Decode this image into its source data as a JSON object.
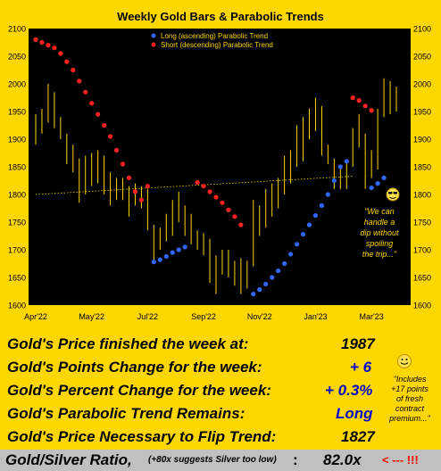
{
  "chart_data": {
    "type": "scatter",
    "title": "Weekly Gold Bars & Parabolic Trends",
    "ylim": [
      1600,
      2100
    ],
    "y_ticks": [
      1600,
      1650,
      1700,
      1750,
      1800,
      1850,
      1900,
      1950,
      2000,
      2050,
      2100
    ],
    "x_ticks": [
      "Apr'22",
      "May'22",
      "Jul'22",
      "Sep'22",
      "Nov'22",
      "Jan'23",
      "Mar'23"
    ],
    "legend": {
      "placement": "top-center",
      "entries": [
        "Long (ascending) Parabolic Trend",
        "Short (descending) Parabolic Trend"
      ]
    },
    "colors": {
      "background": "#000000",
      "bars": "#FFD700",
      "long": "#3366FF",
      "short": "#FF2020",
      "trendline": "#FFD700"
    },
    "annotation": {
      "lines": [
        "\"We can",
        "handle a",
        "dip without",
        "spoiling",
        "the trip...\""
      ]
    },
    "trendline": {
      "start_week": 0,
      "start_value": 1800,
      "end_week": 51,
      "end_value": 1833
    },
    "bars": [
      {
        "week": 0,
        "high": 1945,
        "low": 1890
      },
      {
        "week": 1,
        "high": 1955,
        "low": 1910
      },
      {
        "week": 2,
        "high": 2000,
        "low": 1930
      },
      {
        "week": 3,
        "high": 1985,
        "low": 1920
      },
      {
        "week": 4,
        "high": 1940,
        "low": 1900
      },
      {
        "week": 5,
        "high": 1910,
        "low": 1855
      },
      {
        "week": 6,
        "high": 1890,
        "low": 1840
      },
      {
        "week": 7,
        "high": 1865,
        "low": 1785
      },
      {
        "week": 8,
        "high": 1870,
        "low": 1800
      },
      {
        "week": 9,
        "high": 1875,
        "low": 1815
      },
      {
        "week": 10,
        "high": 1880,
        "low": 1820
      },
      {
        "week": 11,
        "high": 1870,
        "low": 1800
      },
      {
        "week": 12,
        "high": 1840,
        "low": 1780
      },
      {
        "week": 13,
        "high": 1830,
        "low": 1790
      },
      {
        "week": 14,
        "high": 1830,
        "low": 1790
      },
      {
        "week": 15,
        "high": 1815,
        "low": 1760
      },
      {
        "week": 16,
        "high": 1820,
        "low": 1780
      },
      {
        "week": 17,
        "high": 1815,
        "low": 1775
      },
      {
        "week": 18,
        "high": 1810,
        "low": 1735
      },
      {
        "week": 19,
        "high": 1745,
        "low": 1680
      },
      {
        "week": 20,
        "high": 1740,
        "low": 1700
      },
      {
        "week": 21,
        "high": 1765,
        "low": 1715
      },
      {
        "week": 22,
        "high": 1790,
        "low": 1725
      },
      {
        "week": 23,
        "high": 1805,
        "low": 1750
      },
      {
        "week": 24,
        "high": 1780,
        "low": 1725
      },
      {
        "week": 25,
        "high": 1765,
        "low": 1710
      },
      {
        "week": 26,
        "high": 1735,
        "low": 1700
      },
      {
        "week": 27,
        "high": 1730,
        "low": 1690
      },
      {
        "week": 28,
        "high": 1720,
        "low": 1640
      },
      {
        "week": 29,
        "high": 1690,
        "low": 1620
      },
      {
        "week": 30,
        "high": 1700,
        "low": 1655
      },
      {
        "week": 31,
        "high": 1700,
        "low": 1650
      },
      {
        "week": 32,
        "high": 1680,
        "low": 1635
      },
      {
        "week": 33,
        "high": 1685,
        "low": 1620
      },
      {
        "week": 34,
        "high": 1680,
        "low": 1630
      },
      {
        "week": 35,
        "high": 1790,
        "low": 1670
      },
      {
        "week": 36,
        "high": 1780,
        "low": 1725
      },
      {
        "week": 37,
        "high": 1810,
        "low": 1740
      },
      {
        "week": 38,
        "high": 1820,
        "low": 1760
      },
      {
        "week": 39,
        "high": 1830,
        "low": 1775
      },
      {
        "week": 40,
        "high": 1870,
        "low": 1800
      },
      {
        "week": 41,
        "high": 1880,
        "low": 1820
      },
      {
        "week": 42,
        "high": 1925,
        "low": 1850
      },
      {
        "week": 43,
        "high": 1940,
        "low": 1860
      },
      {
        "week": 44,
        "high": 1955,
        "low": 1900
      },
      {
        "week": 45,
        "high": 1975,
        "low": 1915
      },
      {
        "week": 46,
        "high": 1960,
        "low": 1870
      },
      {
        "week": 47,
        "high": 1890,
        "low": 1855
      },
      {
        "week": 48,
        "high": 1865,
        "low": 1810
      },
      {
        "week": 49,
        "high": 1850,
        "low": 1810
      },
      {
        "week": 50,
        "high": 1860,
        "low": 1810
      },
      {
        "week": 51,
        "high": 1920,
        "low": 1850
      },
      {
        "week": 52,
        "high": 1945,
        "low": 1885
      },
      {
        "week": 53,
        "high": 1910,
        "low": 1810
      },
      {
        "week": 54,
        "high": 1880,
        "low": 1830
      },
      {
        "week": 55,
        "high": 1955,
        "low": 1845
      },
      {
        "week": 56,
        "high": 2010,
        "low": 1940
      },
      {
        "week": 57,
        "high": 2005,
        "low": 1945
      },
      {
        "week": 58,
        "high": 1995,
        "low": 1950
      }
    ],
    "series": [
      {
        "name": "Long (ascending) Parabolic Trend",
        "points": [
          {
            "week": 19,
            "value": 1678
          },
          {
            "week": 20,
            "value": 1682
          },
          {
            "week": 21,
            "value": 1688
          },
          {
            "week": 22,
            "value": 1695
          },
          {
            "week": 23,
            "value": 1700
          },
          {
            "week": 24,
            "value": 1705
          },
          {
            "week": 35,
            "value": 1620
          },
          {
            "week": 36,
            "value": 1628
          },
          {
            "week": 37,
            "value": 1638
          },
          {
            "week": 38,
            "value": 1650
          },
          {
            "week": 39,
            "value": 1662
          },
          {
            "week": 40,
            "value": 1675
          },
          {
            "week": 41,
            "value": 1692
          },
          {
            "week": 42,
            "value": 1710
          },
          {
            "week": 43,
            "value": 1728
          },
          {
            "week": 44,
            "value": 1745
          },
          {
            "week": 45,
            "value": 1762
          },
          {
            "week": 46,
            "value": 1780
          },
          {
            "week": 47,
            "value": 1800
          },
          {
            "week": 48,
            "value": 1825
          },
          {
            "week": 49,
            "value": 1850
          },
          {
            "week": 50,
            "value": 1860
          },
          {
            "week": 54,
            "value": 1812
          },
          {
            "week": 55,
            "value": 1820
          },
          {
            "week": 56,
            "value": 1830
          }
        ]
      },
      {
        "name": "Short (descending) Parabolic Trend",
        "points": [
          {
            "week": 0,
            "value": 2080
          },
          {
            "week": 1,
            "value": 2075
          },
          {
            "week": 2,
            "value": 2070
          },
          {
            "week": 3,
            "value": 2065
          },
          {
            "week": 4,
            "value": 2055
          },
          {
            "week": 5,
            "value": 2040
          },
          {
            "week": 6,
            "value": 2025
          },
          {
            "week": 7,
            "value": 2005
          },
          {
            "week": 8,
            "value": 1985
          },
          {
            "week": 9,
            "value": 1965
          },
          {
            "week": 10,
            "value": 1945
          },
          {
            "week": 11,
            "value": 1925
          },
          {
            "week": 12,
            "value": 1905
          },
          {
            "week": 13,
            "value": 1880
          },
          {
            "week": 14,
            "value": 1855
          },
          {
            "week": 15,
            "value": 1830
          },
          {
            "week": 16,
            "value": 1805
          },
          {
            "week": 17,
            "value": 1790
          },
          {
            "week": 18,
            "value": 1815
          },
          {
            "week": 26,
            "value": 1822
          },
          {
            "week": 27,
            "value": 1815
          },
          {
            "week": 28,
            "value": 1805
          },
          {
            "week": 29,
            "value": 1795
          },
          {
            "week": 30,
            "value": 1785
          },
          {
            "week": 31,
            "value": 1772
          },
          {
            "week": 32,
            "value": 1760
          },
          {
            "week": 33,
            "value": 1745
          },
          {
            "week": 51,
            "value": 1975
          },
          {
            "week": 52,
            "value": 1970
          },
          {
            "week": 53,
            "value": 1960
          },
          {
            "week": 54,
            "value": 1952
          }
        ]
      }
    ]
  },
  "info": {
    "rows": [
      {
        "label": "Gold's Price finished the week at:",
        "value": "1987",
        "value_color": "#000000"
      },
      {
        "label": "Gold's Points Change for the week:",
        "value": "+ 6",
        "value_color": "#0000CC"
      },
      {
        "label": "Gold's Percent Change for the week:",
        "value": "+ 0.3%",
        "value_color": "#0000CC"
      },
      {
        "label": "Gold's Parabolic Trend Remains:",
        "value": "Long",
        "value_color": "#0000CC"
      },
      {
        "label": "Gold's Price Necessary to Flip Trend:",
        "value": "1827",
        "value_color": "#000000"
      }
    ],
    "note_lines": [
      "\"Includes",
      "+17 points",
      "of fresh",
      "contract",
      "premium...\""
    ],
    "ratio": {
      "label": "Gold/Silver Ratio,",
      "note": "(+80x suggests Silver too low)",
      "colon": ":",
      "value": "82.0x",
      "arrow": "< --- !!!",
      "arrow_color": "#FF0000"
    }
  }
}
